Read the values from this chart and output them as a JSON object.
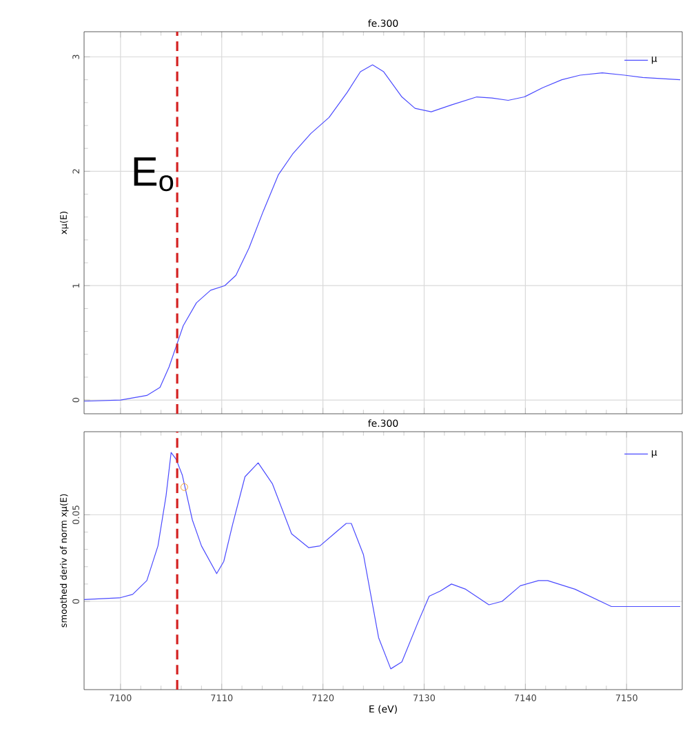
{
  "chart_data": [
    {
      "type": "line",
      "title": "fe.300",
      "ylabel": "xμ(E)",
      "xlim": [
        7096.4,
        7155.5
      ],
      "ylim": [
        -0.12,
        3.22
      ],
      "xticks": [
        7100,
        7110,
        7120,
        7130,
        7140,
        7150
      ],
      "yticks": [
        0,
        1,
        2,
        3
      ],
      "tick_labels": "y",
      "grid": true,
      "legend": "top right",
      "series": [
        {
          "name": "μ",
          "color": "#4a4aff",
          "x": [
            7096.4,
            7100,
            7102.6,
            7103.9,
            7104.8,
            7105.5,
            7106.2,
            7107.5,
            7108.9,
            7110.3,
            7111.4,
            7112.7,
            7114.1,
            7115.6,
            7117,
            7118.8,
            7120.6,
            7122.4,
            7123.7,
            7124.9,
            7126,
            7127.8,
            7129.1,
            7130.7,
            7132.7,
            7135.2,
            7136.7,
            7138.3,
            7139.9,
            7141.7,
            7143.6,
            7145.4,
            7147.6,
            7149.8,
            7151.6,
            7155.3
          ],
          "values": [
            -0.01,
            0.0,
            0.04,
            0.11,
            0.29,
            0.47,
            0.65,
            0.85,
            0.96,
            1.0,
            1.09,
            1.33,
            1.65,
            1.97,
            2.15,
            2.33,
            2.47,
            2.69,
            2.87,
            2.93,
            2.87,
            2.65,
            2.55,
            2.52,
            2.58,
            2.65,
            2.64,
            2.62,
            2.65,
            2.73,
            2.8,
            2.84,
            2.86,
            2.84,
            2.82,
            2.8
          ]
        }
      ],
      "ref_lines": [
        {
          "axis": "x",
          "value": 7105.6,
          "color": "#d42020",
          "line_style": "dashed"
        }
      ],
      "annotations": [
        "E$_{o}$"
      ]
    },
    {
      "type": "line",
      "title": "fe.300",
      "xlabel": "E (eV)",
      "ylabel": "smoothed deriv of norm xμ(E)",
      "xlim": [
        7096.4,
        7155.5
      ],
      "ylim": [
        -0.051,
        0.098
      ],
      "xticks": [
        7100,
        7110,
        7120,
        7130,
        7140,
        7150
      ],
      "yticks": [
        0,
        0.05
      ],
      "grid": true,
      "legend": "top right",
      "series": [
        {
          "name": "μ",
          "color": "#4a4aff",
          "x": [
            7096.4,
            7099.9,
            7101.2,
            7102.6,
            7103.7,
            7104.5,
            7105,
            7105.5,
            7106.1,
            7107.1,
            7108,
            7109.5,
            7110.2,
            7111.1,
            7112.3,
            7113.6,
            7115,
            7116.9,
            7118.6,
            7119.7,
            7121.3,
            7122.3,
            7122.8,
            7124,
            7125.5,
            7126.7,
            7127.8,
            7129.4,
            7130.5,
            7131.6,
            7132.7,
            7134.1,
            7136.4,
            7137.7,
            7139.5,
            7141.3,
            7142.2,
            7144.9,
            7148.5,
            7152.1,
            7155.3
          ],
          "values": [
            0.001,
            0.002,
            0.004,
            0.012,
            0.032,
            0.061,
            0.086,
            0.082,
            0.073,
            0.047,
            0.032,
            0.016,
            0.023,
            0.045,
            0.072,
            0.08,
            0.068,
            0.039,
            0.031,
            0.032,
            0.04,
            0.045,
            0.045,
            0.027,
            -0.021,
            -0.039,
            -0.035,
            -0.012,
            0.003,
            0.006,
            0.01,
            0.007,
            -0.002,
            0.0,
            0.009,
            0.012,
            0.012,
            0.007,
            -0.003,
            -0.003,
            -0.003
          ]
        },
        {
          "type": "scatter",
          "color": "#f0a030",
          "marker": "circle",
          "x": [
            7106.3
          ],
          "values": [
            0.066
          ]
        }
      ],
      "ref_lines": [
        {
          "axis": "x",
          "value": 7105.6,
          "color": "#d42020",
          "line_style": "dashed"
        }
      ]
    }
  ]
}
